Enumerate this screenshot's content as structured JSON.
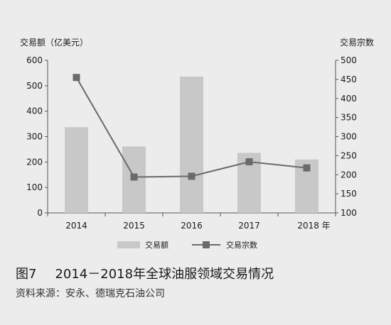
{
  "figure": {
    "number": "图7",
    "title": "2014－2018年全球油服领域交易情况",
    "source": "资料来源：安永、德瑞克石油公司"
  },
  "chart_data": {
    "type": "bar",
    "categories": [
      "2014",
      "2015",
      "2016",
      "2017",
      "2018 年"
    ],
    "series": [
      {
        "name": "交易额",
        "type": "bar",
        "axis": "left",
        "values": [
          337,
          261,
          536,
          236,
          210
        ],
        "color": "#c8c8c8"
      },
      {
        "name": "交易宗数",
        "type": "line",
        "axis": "right",
        "values": [
          455,
          194,
          196,
          234,
          218
        ],
        "color": "#6a6a6a"
      }
    ],
    "ylabel_left": "交易额（亿美元）",
    "ylabel_right": "交易宗数",
    "ylim_left": [
      0,
      600
    ],
    "yticks_left": [
      0,
      100,
      200,
      300,
      400,
      500,
      600
    ],
    "ylim_right": [
      100,
      500
    ],
    "yticks_right": [
      100,
      150,
      200,
      250,
      300,
      350,
      400,
      450,
      500
    ],
    "grid": false,
    "legend_position": "bottom"
  }
}
